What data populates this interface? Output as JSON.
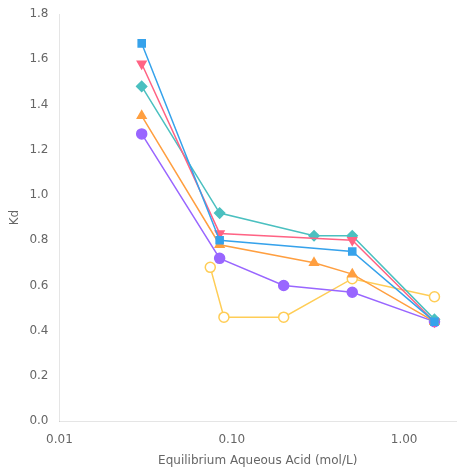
{
  "chart_data": {
    "type": "line",
    "xlabel": "Equilibrium Aqueous Acid (mol/L)",
    "ylabel": "Kd",
    "log": "x",
    "grid": false,
    "xlim": [
      0.01,
      2.0
    ],
    "xticks": [
      0.01,
      {
        "value": 0.1,
        "label": "0.10"
      },
      {
        "value": 1,
        "label": "1.00"
      }
    ],
    "ylim": [
      0.0,
      1.8
    ],
    "yticks": [
      {
        "value": 0,
        "label": "0.0"
      },
      0.2,
      0.4,
      0.6,
      0.8,
      {
        "value": 1,
        "label": "1.0"
      },
      1.2,
      1.4,
      1.6,
      1.8
    ],
    "series": [
      {
        "marker": "square",
        "x": [
          0.03,
          0.085,
          0.5,
          1.5
        ],
        "values": [
          1.67,
          0.8,
          0.75,
          0.44
        ]
      },
      {
        "marker": "triangle_down",
        "x": [
          0.03,
          0.085,
          0.5,
          1.5
        ],
        "values": [
          1.58,
          0.83,
          0.8,
          0.44
        ]
      },
      {
        "marker": "diamond",
        "x": [
          0.03,
          0.085,
          0.3,
          0.5,
          1.5
        ],
        "values": [
          1.48,
          0.92,
          0.82,
          0.82,
          0.45
        ]
      },
      {
        "marker": "triangle_up",
        "x": [
          0.03,
          0.085,
          0.3,
          0.5,
          1.5
        ],
        "values": [
          1.35,
          0.78,
          0.7,
          0.65,
          0.44
        ]
      },
      {
        "marker": "circle",
        "x": [
          0.03,
          0.085,
          0.2,
          0.5,
          1.5
        ],
        "values": [
          1.27,
          0.72,
          0.6,
          0.57,
          0.44
        ]
      },
      {
        "marker": "open_circle",
        "x": [
          0.075,
          0.09,
          0.2,
          0.5,
          1.5
        ],
        "values": [
          0.68,
          0.46,
          0.46,
          0.63,
          0.55
        ]
      }
    ]
  }
}
